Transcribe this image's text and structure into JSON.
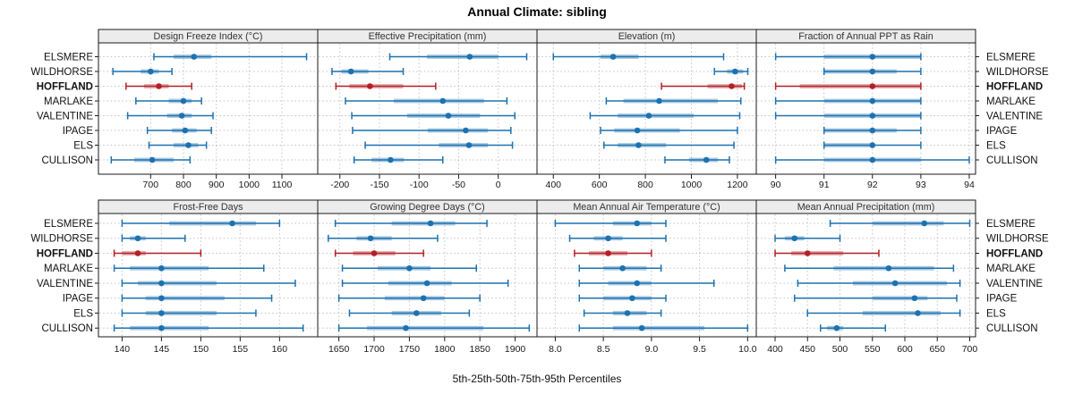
{
  "chart_data": {
    "type": "dotplot",
    "title": "Annual Climate: sibling",
    "caption": "5th-25th-50th-75th-95th Percentiles",
    "percentiles_shown": [
      5,
      25,
      50,
      75,
      95
    ],
    "legend_position": "none",
    "grid": "dotted",
    "sites": [
      "ELSMERE",
      "WILDHORSE",
      "HOFFLAND",
      "MARLAKE",
      "VALENTINE",
      "IPAGE",
      "ELS",
      "CULLISON"
    ],
    "highlight_site": "HOFFLAND",
    "colors": {
      "series": "#1c72b0",
      "highlight": "#b51f24",
      "strip_bg": "#ececec",
      "panel_border": "#1a1a1a",
      "grid": "#c6c6c6",
      "tick_text": "#1a1a1a"
    },
    "panels": [
      {
        "row": 0,
        "col": 0,
        "title": "Design Freeze Index (°C)",
        "xmin": 541,
        "xmax": 1209,
        "ticks": [
          700,
          800,
          900,
          1000,
          1100
        ],
        "tick_labels": [
          "700",
          "800",
          "900",
          "1000",
          "1100"
        ],
        "values": [
          [
            710,
            770,
            832,
            885,
            1175
          ],
          [
            585,
            670,
            700,
            725,
            765
          ],
          [
            625,
            680,
            725,
            755,
            825
          ],
          [
            655,
            755,
            800,
            825,
            855
          ],
          [
            630,
            750,
            795,
            825,
            890
          ],
          [
            690,
            765,
            805,
            840,
            885
          ],
          [
            695,
            770,
            815,
            845,
            870
          ],
          [
            580,
            650,
            705,
            770,
            820
          ]
        ]
      },
      {
        "row": 0,
        "col": 1,
        "title": "Effective Precipitation (mm)",
        "xmin": -228,
        "xmax": 49,
        "ticks": [
          -200,
          -150,
          -100,
          -50,
          0
        ],
        "tick_labels": [
          "-200",
          "-150",
          "-100",
          "-50",
          "0"
        ],
        "values": [
          [
            -137,
            -90,
            -36,
            0,
            36
          ],
          [
            -210,
            -198,
            -186,
            -164,
            -120
          ],
          [
            -205,
            -188,
            -162,
            -120,
            -79
          ],
          [
            -193,
            -132,
            -70,
            -18,
            11
          ],
          [
            -185,
            -115,
            -63,
            -23,
            21
          ],
          [
            -184,
            -89,
            -41,
            -13,
            16
          ],
          [
            -168,
            -75,
            -37,
            -13,
            18
          ],
          [
            -182,
            -160,
            -136,
            -119,
            -70
          ]
        ]
      },
      {
        "row": 0,
        "col": 2,
        "title": "Elevation (m)",
        "xmin": 329,
        "xmax": 1282,
        "ticks": [
          400,
          600,
          800,
          1000,
          1200
        ],
        "tick_labels": [
          "400",
          "600",
          "800",
          "1000",
          "1200"
        ],
        "values": [
          [
            400,
            605,
            660,
            770,
            1140
          ],
          [
            1100,
            1155,
            1190,
            1225,
            1245
          ],
          [
            870,
            1070,
            1175,
            1220,
            1230
          ],
          [
            630,
            705,
            860,
            1115,
            1215
          ],
          [
            560,
            680,
            815,
            1010,
            1210
          ],
          [
            605,
            665,
            765,
            950,
            1200
          ],
          [
            620,
            680,
            770,
            890,
            1185
          ],
          [
            885,
            990,
            1065,
            1115,
            1165
          ]
        ]
      },
      {
        "row": 0,
        "col": 3,
        "title": "Fraction of Annual PPT as Rain",
        "xmin": 89.6,
        "xmax": 94.13,
        "ticks": [
          90,
          91,
          92,
          93,
          94
        ],
        "tick_labels": [
          "90",
          "91",
          "92",
          "93",
          "94"
        ],
        "values": [
          [
            90,
            91,
            92,
            93,
            93
          ],
          [
            91,
            91,
            92,
            92.5,
            93
          ],
          [
            90,
            90.5,
            92,
            93,
            93
          ],
          [
            90,
            91,
            92,
            93,
            93
          ],
          [
            90,
            91,
            92,
            93,
            93
          ],
          [
            91,
            91,
            92,
            92.5,
            93
          ],
          [
            91,
            91,
            92,
            92,
            93
          ],
          [
            90,
            91,
            92,
            93,
            94
          ]
        ]
      },
      {
        "row": 1,
        "col": 0,
        "title": "Frost-Free Days",
        "xmin": 137,
        "xmax": 164.85,
        "ticks": [
          140,
          145,
          150,
          155,
          160
        ],
        "tick_labels": [
          "140",
          "145",
          "150",
          "155",
          "160"
        ],
        "values": [
          [
            140,
            146,
            154,
            157,
            160
          ],
          [
            140,
            141,
            142,
            143,
            148
          ],
          [
            139,
            140,
            142,
            143,
            150
          ],
          [
            139,
            141,
            145,
            151,
            158
          ],
          [
            140,
            142,
            145,
            152,
            162
          ],
          [
            140,
            143,
            145,
            153,
            159
          ],
          [
            140,
            143,
            145,
            152,
            157
          ],
          [
            139,
            141,
            145,
            151,
            163
          ]
        ]
      },
      {
        "row": 1,
        "col": 1,
        "title": "Growing Degree Days (°C)",
        "xmin": 1620,
        "xmax": 1931,
        "ticks": [
          1650,
          1700,
          1750,
          1800,
          1850,
          1900
        ],
        "tick_labels": [
          "1650",
          "1700",
          "1750",
          "1800",
          "1850",
          "1900"
        ],
        "values": [
          [
            1645,
            1725,
            1780,
            1815,
            1860
          ],
          [
            1635,
            1675,
            1695,
            1725,
            1790
          ],
          [
            1645,
            1670,
            1700,
            1730,
            1770
          ],
          [
            1655,
            1705,
            1750,
            1780,
            1845
          ],
          [
            1655,
            1720,
            1775,
            1810,
            1890
          ],
          [
            1650,
            1715,
            1770,
            1800,
            1850
          ],
          [
            1665,
            1725,
            1760,
            1795,
            1835
          ],
          [
            1650,
            1690,
            1745,
            1855,
            1920
          ]
        ]
      },
      {
        "row": 1,
        "col": 2,
        "title": "Mean Annual Air Temperature (°C)",
        "xmin": 7.81,
        "xmax": 10.09,
        "ticks": [
          8.0,
          8.5,
          9.0,
          9.5,
          10.0
        ],
        "tick_labels": [
          "8.0",
          "8.5",
          "9.0",
          "9.5",
          "10.0"
        ],
        "values": [
          [
            8.0,
            8.6,
            8.85,
            9.0,
            9.15
          ],
          [
            8.15,
            8.4,
            8.55,
            8.7,
            9.15
          ],
          [
            8.2,
            8.35,
            8.55,
            8.75,
            9.0
          ],
          [
            8.25,
            8.5,
            8.7,
            8.95,
            9.1
          ],
          [
            8.25,
            8.55,
            8.85,
            9.0,
            9.65
          ],
          [
            8.25,
            8.5,
            8.8,
            9.0,
            9.15
          ],
          [
            8.3,
            8.6,
            8.75,
            8.95,
            9.1
          ],
          [
            8.25,
            8.6,
            8.9,
            9.55,
            10.0
          ]
        ]
      },
      {
        "row": 1,
        "col": 3,
        "title": "Mean Annual Precipitation (mm)",
        "xmin": 371,
        "xmax": 709,
        "ticks": [
          400,
          450,
          500,
          550,
          600,
          650,
          700
        ],
        "tick_labels": [
          "400",
          "450",
          "500",
          "550",
          "600",
          "650",
          "700"
        ],
        "values": [
          [
            485,
            550,
            630,
            660,
            700
          ],
          [
            400,
            415,
            430,
            445,
            500
          ],
          [
            400,
            425,
            450,
            505,
            560
          ],
          [
            415,
            490,
            575,
            645,
            675
          ],
          [
            435,
            520,
            585,
            665,
            685
          ],
          [
            430,
            550,
            615,
            635,
            680
          ],
          [
            450,
            535,
            620,
            655,
            685
          ],
          [
            470,
            480,
            495,
            505,
            570
          ]
        ]
      }
    ]
  }
}
